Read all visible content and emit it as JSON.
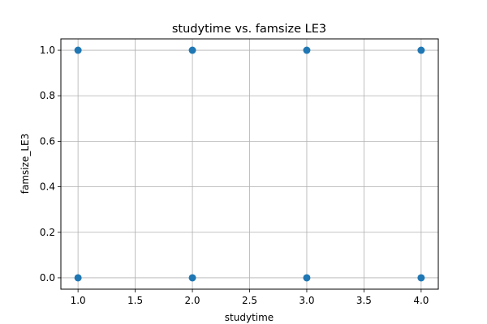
{
  "chart_data": {
    "type": "scatter",
    "title": "studytime vs. famsize LE3",
    "xlabel": "studytime",
    "ylabel": "famsize_LE3",
    "xlim": [
      0.85,
      4.15
    ],
    "ylim": [
      -0.05,
      1.05
    ],
    "xticks": [
      1.0,
      1.5,
      2.0,
      2.5,
      3.0,
      3.5,
      4.0
    ],
    "xtick_labels": [
      "1.0",
      "1.5",
      "2.0",
      "2.5",
      "3.0",
      "3.5",
      "4.0"
    ],
    "yticks": [
      0.0,
      0.2,
      0.4,
      0.6,
      0.8,
      1.0
    ],
    "ytick_labels": [
      "0.0",
      "0.2",
      "0.4",
      "0.6",
      "0.8",
      "1.0"
    ],
    "grid": true,
    "marker_color": "#1f77b4",
    "points": [
      {
        "x": 1,
        "y": 1
      },
      {
        "x": 2,
        "y": 1
      },
      {
        "x": 3,
        "y": 1
      },
      {
        "x": 4,
        "y": 1
      },
      {
        "x": 1,
        "y": 0
      },
      {
        "x": 2,
        "y": 0
      },
      {
        "x": 3,
        "y": 0
      },
      {
        "x": 4,
        "y": 0
      }
    ]
  }
}
